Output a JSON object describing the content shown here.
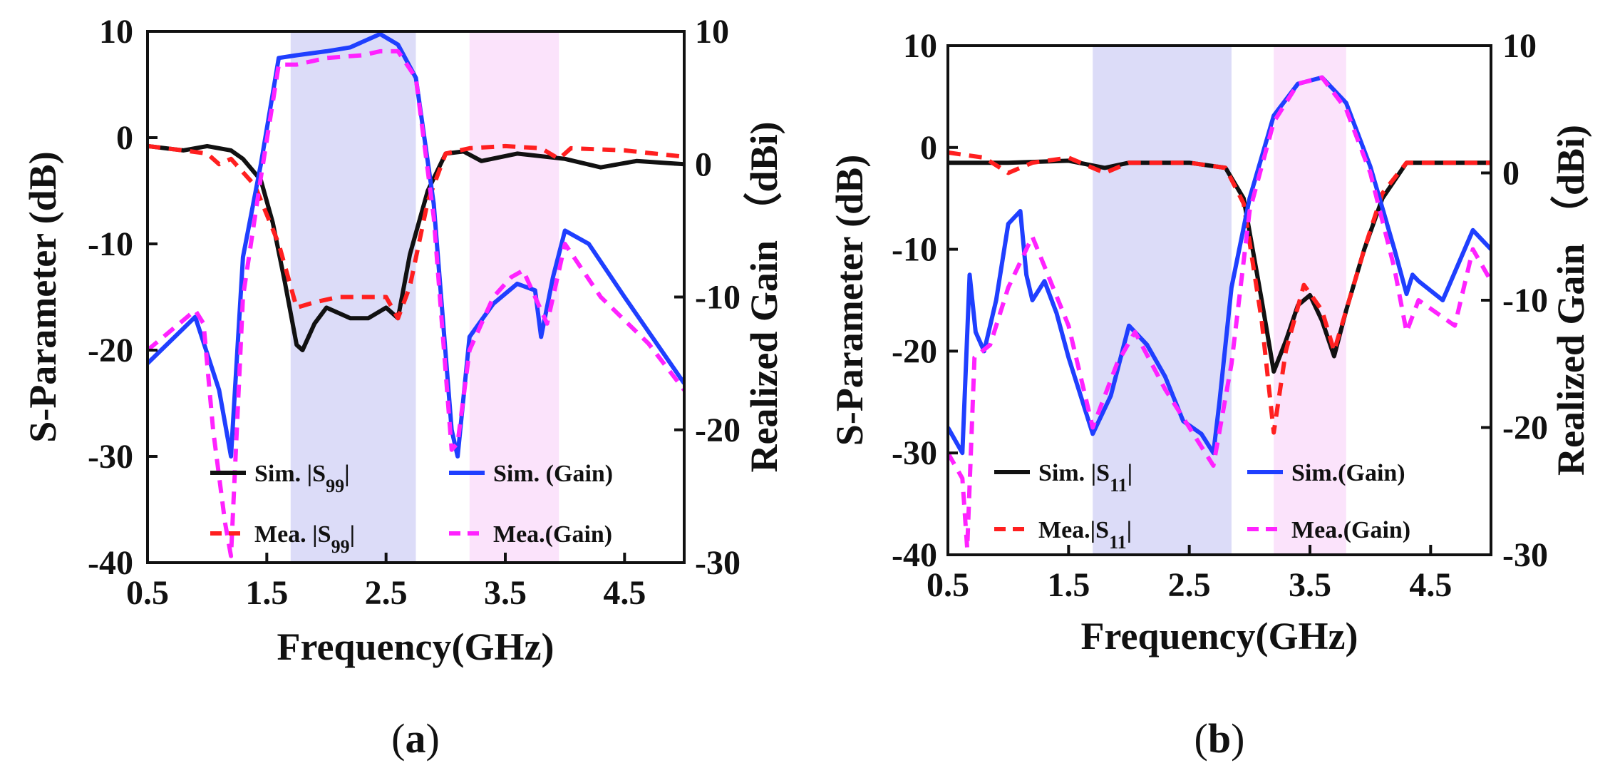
{
  "chart_data": [
    {
      "panel": "(a)",
      "panel_letter": "a",
      "type": "line",
      "xlabel": "Frequency(GHz)",
      "ylabel_left": "S-Parameter (dB)",
      "ylabel_right": "Realized Gain （dBi)",
      "xlim": [
        0.5,
        5.0
      ],
      "ylim_left": [
        -40,
        10
      ],
      "ylim_right": [
        -30,
        10
      ],
      "xticks": [
        "0.5",
        "1.5",
        "2.5",
        "3.5",
        "4.5"
      ],
      "xtick_values": [
        0.5,
        1.5,
        2.5,
        3.5,
        4.5
      ],
      "yticks_left": [
        "10",
        "0",
        "-10",
        "-20",
        "-30",
        "-40"
      ],
      "ytick_values_left": [
        10,
        0,
        -10,
        -20,
        -30,
        -40
      ],
      "yticks_right": [
        "10",
        "0",
        "-10",
        "-20",
        "-30"
      ],
      "ytick_values_right": [
        10,
        0,
        -10,
        -20,
        -30
      ],
      "bands": [
        {
          "x": [
            1.7,
            2.75
          ],
          "color": "#dcdcf8"
        },
        {
          "x": [
            3.2,
            3.95
          ],
          "color": "#fbe3fb"
        }
      ],
      "legend_placement": "bottom-right",
      "series": [
        {
          "name": "Sim. |S99|",
          "label_main": "Sim. |S",
          "label_sub": "99",
          "label_end": "|",
          "color": "#111111",
          "dash": "solid",
          "axis": "left",
          "x": [
            0.5,
            0.8,
            1.0,
            1.2,
            1.3,
            1.45,
            1.55,
            1.65,
            1.75,
            1.8,
            1.9,
            2.0,
            2.2,
            2.35,
            2.5,
            2.6,
            2.7,
            2.85,
            3.0,
            3.15,
            3.3,
            3.6,
            4.0,
            4.3,
            4.6,
            5.0
          ],
          "y": [
            -0.8,
            -1.2,
            -0.8,
            -1.2,
            -2.0,
            -4.0,
            -8.0,
            -13.5,
            -19.5,
            -20.0,
            -17.5,
            -16.0,
            -17.0,
            -17.0,
            -16.0,
            -17.0,
            -11.0,
            -5.0,
            -1.5,
            -1.3,
            -2.2,
            -1.5,
            -2.0,
            -2.8,
            -2.2,
            -2.5
          ]
        },
        {
          "name": "Mea. |S99|",
          "label_main": "Mea. |S",
          "label_sub": "99",
          "label_end": "|",
          "color": "#ff1f1f",
          "dash": "dash",
          "axis": "left",
          "x": [
            0.5,
            0.8,
            1.0,
            1.1,
            1.2,
            1.4,
            1.6,
            1.75,
            1.9,
            2.1,
            2.3,
            2.5,
            2.6,
            2.7,
            2.85,
            3.0,
            3.2,
            3.5,
            3.8,
            3.95,
            4.05,
            4.5,
            5.0
          ],
          "y": [
            -0.8,
            -1.2,
            -1.5,
            -2.5,
            -2.0,
            -4.5,
            -10.0,
            -16.0,
            -15.5,
            -15.0,
            -15.0,
            -15.0,
            -17.0,
            -14.0,
            -6.0,
            -1.5,
            -1.0,
            -0.8,
            -1.0,
            -2.0,
            -1.0,
            -1.2,
            -1.8
          ]
        },
        {
          "name": "Sim. (Gain)",
          "label_main": "Sim. (Gain)",
          "color": "#1f3fff",
          "dash": "solid",
          "axis": "right",
          "x": [
            0.5,
            0.9,
            1.1,
            1.2,
            1.3,
            1.45,
            1.6,
            1.75,
            2.0,
            2.2,
            2.45,
            2.6,
            2.75,
            2.9,
            3.05,
            3.1,
            3.2,
            3.4,
            3.6,
            3.75,
            3.8,
            3.9,
            4.0,
            4.2,
            4.5,
            5.0
          ],
          "y": [
            -15.0,
            -11.5,
            -17.0,
            -22.0,
            -7.0,
            0.0,
            8.0,
            8.2,
            8.5,
            8.8,
            9.8,
            9.0,
            6.5,
            -3.0,
            -20.0,
            -22.0,
            -13.0,
            -10.5,
            -9.0,
            -9.5,
            -13.0,
            -8.5,
            -5.0,
            -6.0,
            -10.0,
            -16.5
          ]
        },
        {
          "name": "Mea.(Gain)",
          "label_main": "Mea.(Gain)",
          "color": "#ff22ff",
          "dash": "dash",
          "axis": "right",
          "x": [
            0.5,
            0.9,
            0.97,
            1.05,
            1.15,
            1.2,
            1.3,
            1.45,
            1.6,
            1.75,
            2.0,
            2.3,
            2.45,
            2.6,
            2.75,
            2.9,
            3.05,
            3.1,
            3.2,
            3.4,
            3.55,
            3.65,
            3.75,
            3.85,
            4.0,
            4.3,
            4.7,
            5.0
          ],
          "y": [
            -14.0,
            -11.0,
            -12.0,
            -20.0,
            -27.0,
            -29.5,
            -10.0,
            -1.0,
            7.5,
            7.5,
            8.0,
            8.2,
            8.5,
            8.5,
            6.5,
            -4.0,
            -21.5,
            -21.0,
            -14.0,
            -10.0,
            -8.5,
            -8.0,
            -10.0,
            -12.0,
            -6.0,
            -10.0,
            -13.5,
            -17.0
          ]
        }
      ]
    },
    {
      "panel": "(b)",
      "panel_letter": "b",
      "type": "line",
      "xlabel": "Frequency(GHz)",
      "ylabel_left": "S-Parameter (dB)",
      "ylabel_right": "Realized Gain （dBi)",
      "xlim": [
        0.5,
        5.0
      ],
      "ylim_left": [
        -40,
        10
      ],
      "ylim_right": [
        -30,
        10
      ],
      "xticks": [
        "0.5",
        "1.5",
        "2.5",
        "3.5",
        "4.5"
      ],
      "xtick_values": [
        0.5,
        1.5,
        2.5,
        3.5,
        4.5
      ],
      "yticks_left": [
        "10",
        "0",
        "-10",
        "-20",
        "-30",
        "-40"
      ],
      "ytick_values_left": [
        10,
        0,
        -10,
        -20,
        -30,
        -40
      ],
      "yticks_right": [
        "10",
        "0",
        "-10",
        "-20",
        "-30"
      ],
      "ytick_values_right": [
        10,
        0,
        -10,
        -20,
        -30
      ],
      "bands": [
        {
          "x": [
            1.7,
            2.85
          ],
          "color": "#dcdcf8"
        },
        {
          "x": [
            3.2,
            3.8
          ],
          "color": "#fbe3fb"
        }
      ],
      "legend_placement": "bottom-center",
      "series": [
        {
          "name": "Sim. |S11|",
          "label_main": "Sim. |S",
          "label_sub": "11",
          "label_end": "|",
          "color": "#111111",
          "dash": "solid",
          "axis": "left",
          "x": [
            0.5,
            1.0,
            1.5,
            1.8,
            2.0,
            2.5,
            2.8,
            2.95,
            3.1,
            3.2,
            3.3,
            3.4,
            3.5,
            3.6,
            3.7,
            3.8,
            3.95,
            4.1,
            4.3,
            4.6,
            5.0
          ],
          "y": [
            -1.5,
            -1.5,
            -1.3,
            -2.0,
            -1.5,
            -1.5,
            -2.0,
            -5.0,
            -15.0,
            -22.0,
            -19.0,
            -15.5,
            -14.5,
            -17.0,
            -20.5,
            -16.0,
            -10.0,
            -5.0,
            -1.5,
            -1.5,
            -1.5
          ]
        },
        {
          "name": "Mea.|S11|",
          "label_main": "Mea.|S",
          "label_sub": "11",
          "label_end": "|",
          "color": "#ff1f1f",
          "dash": "dash",
          "axis": "left",
          "x": [
            0.5,
            0.8,
            1.0,
            1.2,
            1.5,
            1.8,
            2.0,
            2.5,
            2.8,
            2.95,
            3.1,
            3.2,
            3.3,
            3.45,
            3.6,
            3.7,
            3.8,
            3.95,
            4.1,
            4.3,
            4.7,
            5.0
          ],
          "y": [
            -0.5,
            -1.0,
            -2.5,
            -1.5,
            -1.0,
            -2.5,
            -1.5,
            -1.5,
            -2.0,
            -5.5,
            -17.0,
            -28.0,
            -20.0,
            -13.5,
            -16.0,
            -20.0,
            -16.0,
            -10.0,
            -4.5,
            -1.5,
            -1.5,
            -1.5
          ]
        },
        {
          "name": "Sim.(Gain)",
          "label_main": "Sim.(Gain)",
          "color": "#1f3fff",
          "dash": "solid",
          "axis": "right",
          "x": [
            0.5,
            0.62,
            0.68,
            0.73,
            0.8,
            0.9,
            1.0,
            1.05,
            1.1,
            1.15,
            1.2,
            1.3,
            1.4,
            1.5,
            1.7,
            1.85,
            2.0,
            2.15,
            2.3,
            2.45,
            2.6,
            2.7,
            2.75,
            2.85,
            3.0,
            3.2,
            3.4,
            3.6,
            3.8,
            4.0,
            4.2,
            4.3,
            4.35,
            4.4,
            4.6,
            4.85,
            4.95,
            5.0
          ],
          "y": [
            -20.0,
            -22.0,
            -8.0,
            -12.5,
            -14.0,
            -10.0,
            -4.0,
            -3.5,
            -3.0,
            -8.0,
            -10.0,
            -8.5,
            -11.0,
            -14.5,
            -20.5,
            -17.5,
            -12.0,
            -13.5,
            -16.0,
            -19.5,
            -20.5,
            -22.0,
            -18.0,
            -9.0,
            -2.0,
            4.5,
            7.0,
            7.5,
            5.5,
            0.5,
            -6.0,
            -9.5,
            -8.0,
            -8.5,
            -10.0,
            -4.5,
            -5.5,
            -6.0
          ]
        },
        {
          "name": "Mea.(Gain)",
          "label_main": "Mea.(Gain)",
          "color": "#ff22ff",
          "dash": "dash",
          "axis": "right",
          "x": [
            0.5,
            0.62,
            0.66,
            0.72,
            0.85,
            1.0,
            1.2,
            1.35,
            1.5,
            1.7,
            1.9,
            2.05,
            2.3,
            2.5,
            2.7,
            2.85,
            3.0,
            3.2,
            3.4,
            3.6,
            3.8,
            4.0,
            4.2,
            4.3,
            4.4,
            4.7,
            4.85,
            5.0
          ],
          "y": [
            -22.0,
            -24.0,
            -29.5,
            -14.5,
            -13.5,
            -9.0,
            -5.0,
            -8.5,
            -12.0,
            -20.0,
            -15.0,
            -12.5,
            -17.0,
            -20.0,
            -23.0,
            -15.0,
            -3.0,
            4.0,
            7.0,
            7.5,
            5.0,
            0.0,
            -7.5,
            -12.5,
            -10.0,
            -12.0,
            -6.0,
            -8.5
          ]
        }
      ]
    }
  ]
}
